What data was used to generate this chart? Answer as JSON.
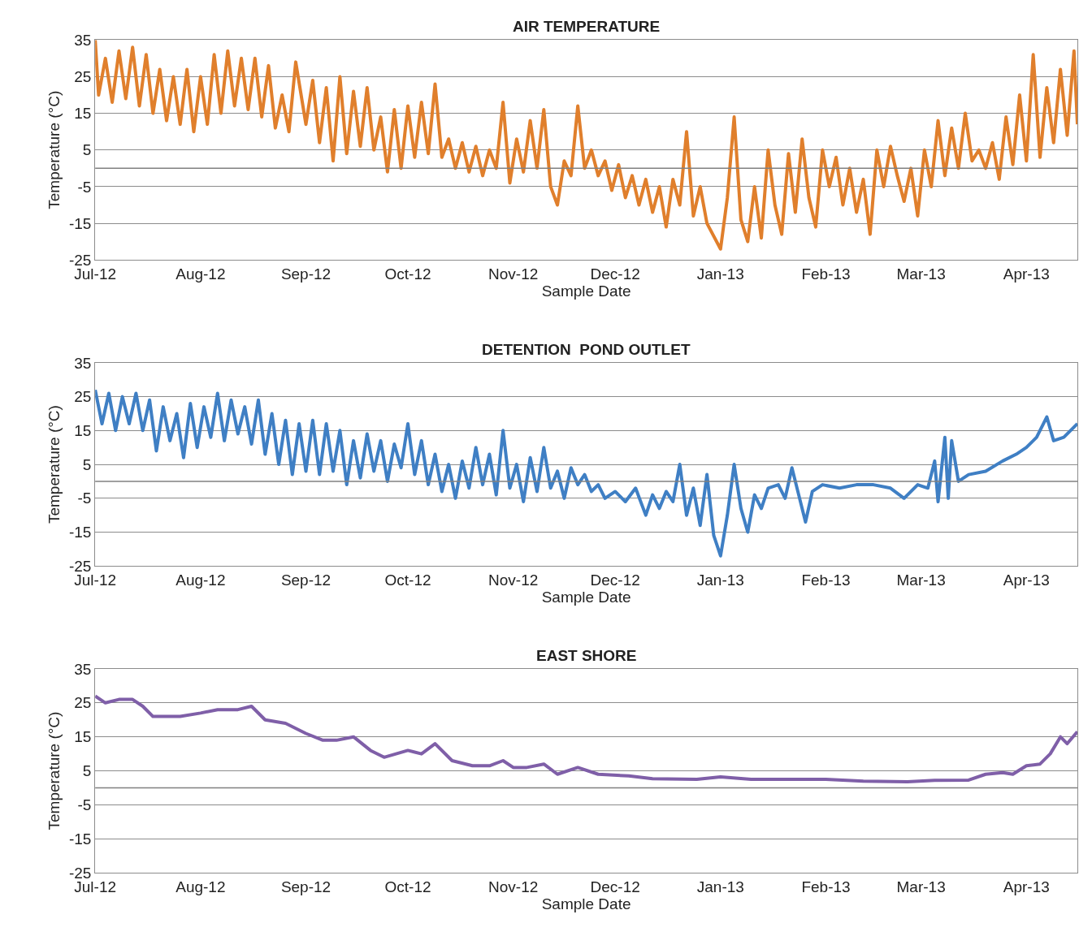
{
  "chart_data": [
    {
      "type": "line",
      "title": "AIR TEMPERATURE",
      "xlabel": "Sample Date",
      "ylabel": "Temperature (°C)",
      "grid": "y",
      "xlim": [
        "2012-07-01",
        "2013-04-16"
      ],
      "ylim": [
        -25,
        35
      ],
      "yticks": [
        -25,
        -15,
        -5,
        5,
        15,
        25,
        35
      ],
      "xticks": [
        {
          "value": "2012-07-01",
          "label": "Jul-12"
        },
        {
          "value": "2012-08-01",
          "label": "Aug-12"
        },
        {
          "value": "2012-09-01",
          "label": "Sep-12"
        },
        {
          "value": "2012-10-01",
          "label": "Oct-12"
        },
        {
          "value": "2012-11-01",
          "label": "Nov-12"
        },
        {
          "value": "2012-12-01",
          "label": "Dec-12"
        },
        {
          "value": "2013-01-01",
          "label": "Jan-13"
        },
        {
          "value": "2013-02-01",
          "label": "Feb-13"
        },
        {
          "value": "2013-03-01",
          "label": "Mar-13"
        },
        {
          "value": "2013-04-01",
          "label": "Apr-13"
        }
      ],
      "ref_lines": [
        {
          "axis": "y",
          "value": 0,
          "color": "#808080"
        }
      ],
      "series": [
        {
          "color": "#e07f2c",
          "x": [
            "2012-07-01",
            "2012-07-02",
            "2012-07-04",
            "2012-07-06",
            "2012-07-08",
            "2012-07-10",
            "2012-07-12",
            "2012-07-14",
            "2012-07-16",
            "2012-07-18",
            "2012-07-20",
            "2012-07-22",
            "2012-07-24",
            "2012-07-26",
            "2012-07-28",
            "2012-07-30",
            "2012-08-01",
            "2012-08-03",
            "2012-08-05",
            "2012-08-07",
            "2012-08-09",
            "2012-08-11",
            "2012-08-13",
            "2012-08-15",
            "2012-08-17",
            "2012-08-19",
            "2012-08-21",
            "2012-08-23",
            "2012-08-25",
            "2012-08-27",
            "2012-08-29",
            "2012-09-01",
            "2012-09-03",
            "2012-09-05",
            "2012-09-07",
            "2012-09-09",
            "2012-09-11",
            "2012-09-13",
            "2012-09-15",
            "2012-09-17",
            "2012-09-19",
            "2012-09-21",
            "2012-09-23",
            "2012-09-25",
            "2012-09-27",
            "2012-09-29",
            "2012-10-01",
            "2012-10-03",
            "2012-10-05",
            "2012-10-07",
            "2012-10-09",
            "2012-10-11",
            "2012-10-13",
            "2012-10-15",
            "2012-10-17",
            "2012-10-19",
            "2012-10-21",
            "2012-10-23",
            "2012-10-25",
            "2012-10-27",
            "2012-10-29",
            "2012-10-31",
            "2012-11-02",
            "2012-11-04",
            "2012-11-06",
            "2012-11-08",
            "2012-11-10",
            "2012-11-12",
            "2012-11-14",
            "2012-11-16",
            "2012-11-18",
            "2012-11-20",
            "2012-11-22",
            "2012-11-24",
            "2012-11-26",
            "2012-11-28",
            "2012-11-30",
            "2012-12-02",
            "2012-12-04",
            "2012-12-06",
            "2012-12-08",
            "2012-12-10",
            "2012-12-12",
            "2012-12-14",
            "2012-12-16",
            "2012-12-18",
            "2012-12-20",
            "2012-12-22",
            "2012-12-24",
            "2012-12-26",
            "2012-12-28",
            "2013-01-01",
            "2013-01-03",
            "2013-01-05",
            "2013-01-07",
            "2013-01-09",
            "2013-01-11",
            "2013-01-13",
            "2013-01-15",
            "2013-01-17",
            "2013-01-19",
            "2013-01-21",
            "2013-01-23",
            "2013-01-25",
            "2013-01-27",
            "2013-01-29",
            "2013-01-31",
            "2013-02-02",
            "2013-02-04",
            "2013-02-06",
            "2013-02-08",
            "2013-02-10",
            "2013-02-12",
            "2013-02-14",
            "2013-02-16",
            "2013-02-18",
            "2013-02-20",
            "2013-02-22",
            "2013-02-24",
            "2013-02-26",
            "2013-02-28",
            "2013-03-02",
            "2013-03-04",
            "2013-03-06",
            "2013-03-08",
            "2013-03-10",
            "2013-03-12",
            "2013-03-14",
            "2013-03-16",
            "2013-03-18",
            "2013-03-20",
            "2013-03-22",
            "2013-03-24",
            "2013-03-26",
            "2013-03-28",
            "2013-03-30",
            "2013-04-01",
            "2013-04-03",
            "2013-04-05",
            "2013-04-07",
            "2013-04-09",
            "2013-04-11",
            "2013-04-13",
            "2013-04-15",
            "2013-04-16"
          ],
          "values": [
            35,
            20,
            30,
            18,
            32,
            19,
            33,
            17,
            31,
            15,
            27,
            13,
            25,
            12,
            27,
            10,
            25,
            12,
            31,
            15,
            32,
            17,
            30,
            16,
            30,
            14,
            28,
            11,
            20,
            10,
            29,
            12,
            24,
            7,
            22,
            2,
            25,
            4,
            21,
            6,
            22,
            5,
            14,
            -1,
            16,
            0,
            17,
            3,
            18,
            4,
            23,
            3,
            8,
            0,
            7,
            -1,
            6,
            -2,
            5,
            0,
            18,
            -4,
            8,
            -1,
            13,
            0,
            16,
            -5,
            -10,
            2,
            -2,
            17,
            0,
            5,
            -2,
            2,
            -6,
            1,
            -8,
            -2,
            -10,
            -3,
            -12,
            -5,
            -16,
            -3,
            -10,
            10,
            -13,
            -5,
            -15,
            -22,
            -8,
            14,
            -14,
            -20,
            -5,
            -19,
            5,
            -10,
            -18,
            4,
            -12,
            8,
            -8,
            -16,
            5,
            -5,
            3,
            -10,
            0,
            -12,
            -3,
            -18,
            5,
            -5,
            6,
            -2,
            -9,
            0,
            -13,
            5,
            -5,
            13,
            -2,
            11,
            0,
            15,
            2,
            5,
            0,
            7,
            -3,
            14,
            1,
            20,
            2,
            31,
            3,
            22,
            7,
            27,
            9,
            32,
            12
          ]
        }
      ]
    },
    {
      "type": "line",
      "title": "DETENTION  POND OUTLET",
      "xlabel": "Sample Date",
      "ylabel": "Temperature (°C)",
      "grid": "y",
      "xlim": [
        "2012-07-01",
        "2013-04-16"
      ],
      "ylim": [
        -25,
        35
      ],
      "yticks": [
        -25,
        -15,
        -5,
        5,
        15,
        25,
        35
      ],
      "xticks": [
        {
          "value": "2012-07-01",
          "label": "Jul-12"
        },
        {
          "value": "2012-08-01",
          "label": "Aug-12"
        },
        {
          "value": "2012-09-01",
          "label": "Sep-12"
        },
        {
          "value": "2012-10-01",
          "label": "Oct-12"
        },
        {
          "value": "2012-11-01",
          "label": "Nov-12"
        },
        {
          "value": "2012-12-01",
          "label": "Dec-12"
        },
        {
          "value": "2013-01-01",
          "label": "Jan-13"
        },
        {
          "value": "2013-02-01",
          "label": "Feb-13"
        },
        {
          "value": "2013-03-01",
          "label": "Mar-13"
        },
        {
          "value": "2013-04-01",
          "label": "Apr-13"
        }
      ],
      "ref_lines": [
        {
          "axis": "y",
          "value": 0,
          "color": "#808080"
        }
      ],
      "series": [
        {
          "color": "#3f7fc4",
          "x": [
            "2012-07-01",
            "2012-07-03",
            "2012-07-05",
            "2012-07-07",
            "2012-07-09",
            "2012-07-11",
            "2012-07-13",
            "2012-07-15",
            "2012-07-17",
            "2012-07-19",
            "2012-07-21",
            "2012-07-23",
            "2012-07-25",
            "2012-07-27",
            "2012-07-29",
            "2012-07-31",
            "2012-08-02",
            "2012-08-04",
            "2012-08-06",
            "2012-08-08",
            "2012-08-10",
            "2012-08-12",
            "2012-08-14",
            "2012-08-16",
            "2012-08-18",
            "2012-08-20",
            "2012-08-22",
            "2012-08-24",
            "2012-08-26",
            "2012-08-28",
            "2012-08-30",
            "2012-09-01",
            "2012-09-03",
            "2012-09-05",
            "2012-09-07",
            "2012-09-09",
            "2012-09-11",
            "2012-09-13",
            "2012-09-15",
            "2012-09-17",
            "2012-09-19",
            "2012-09-21",
            "2012-09-23",
            "2012-09-25",
            "2012-09-27",
            "2012-09-29",
            "2012-10-01",
            "2012-10-03",
            "2012-10-05",
            "2012-10-07",
            "2012-10-09",
            "2012-10-11",
            "2012-10-13",
            "2012-10-15",
            "2012-10-17",
            "2012-10-19",
            "2012-10-21",
            "2012-10-23",
            "2012-10-25",
            "2012-10-27",
            "2012-10-29",
            "2012-10-31",
            "2012-11-02",
            "2012-11-04",
            "2012-11-06",
            "2012-11-08",
            "2012-11-10",
            "2012-11-12",
            "2012-11-14",
            "2012-11-16",
            "2012-11-18",
            "2012-11-20",
            "2012-11-22",
            "2012-11-24",
            "2012-11-26",
            "2012-11-28",
            "2012-12-01",
            "2012-12-04",
            "2012-12-07",
            "2012-12-10",
            "2012-12-12",
            "2012-12-14",
            "2012-12-16",
            "2012-12-18",
            "2012-12-20",
            "2012-12-22",
            "2012-12-24",
            "2012-12-26",
            "2012-12-28",
            "2012-12-30",
            "2013-01-01",
            "2013-01-03",
            "2013-01-05",
            "2013-01-07",
            "2013-01-09",
            "2013-01-11",
            "2013-01-13",
            "2013-01-15",
            "2013-01-18",
            "2013-01-20",
            "2013-01-22",
            "2013-01-24",
            "2013-01-26",
            "2013-01-28",
            "2013-01-31",
            "2013-02-05",
            "2013-02-10",
            "2013-02-15",
            "2013-02-20",
            "2013-02-24",
            "2013-02-28",
            "2013-03-03",
            "2013-03-05",
            "2013-03-06",
            "2013-03-08",
            "2013-03-09",
            "2013-03-10",
            "2013-03-12",
            "2013-03-15",
            "2013-03-20",
            "2013-03-25",
            "2013-03-29",
            "2013-04-01",
            "2013-04-04",
            "2013-04-07",
            "2013-04-09",
            "2013-04-12",
            "2013-04-16"
          ],
          "values": [
            27,
            17,
            26,
            15,
            25,
            17,
            26,
            15,
            24,
            9,
            22,
            12,
            20,
            7,
            23,
            10,
            22,
            13,
            26,
            12,
            24,
            14,
            22,
            11,
            24,
            8,
            20,
            5,
            18,
            2,
            17,
            3,
            18,
            2,
            17,
            3,
            15,
            -1,
            12,
            1,
            14,
            3,
            12,
            0,
            11,
            4,
            17,
            2,
            12,
            -1,
            8,
            -3,
            5,
            -5,
            6,
            -2,
            10,
            -1,
            8,
            -4,
            15,
            -2,
            5,
            -6,
            7,
            -3,
            10,
            -2,
            3,
            -5,
            4,
            -1,
            2,
            -3,
            -1,
            -5,
            -3,
            -6,
            -2,
            -10,
            -4,
            -8,
            -3,
            -6,
            5,
            -10,
            -2,
            -13,
            2,
            -16,
            -22,
            -10,
            5,
            -8,
            -15,
            -4,
            -8,
            -2,
            -1,
            -5,
            4,
            -4,
            -12,
            -3,
            -1,
            -2,
            -1,
            -1,
            -2,
            -5,
            -1,
            -2,
            6,
            -6,
            13,
            -5,
            12,
            0,
            2,
            3,
            6,
            8,
            10,
            13,
            19,
            12,
            13,
            17
          ]
        }
      ]
    },
    {
      "type": "line",
      "title": "EAST SHORE",
      "xlabel": "Sample Date",
      "ylabel": "Temperature (°C)",
      "grid": "y",
      "xlim": [
        "2012-07-01",
        "2013-04-16"
      ],
      "ylim": [
        -25,
        35
      ],
      "yticks": [
        -25,
        -15,
        -5,
        5,
        15,
        25,
        35
      ],
      "xticks": [
        {
          "value": "2012-07-01",
          "label": "Jul-12"
        },
        {
          "value": "2012-08-01",
          "label": "Aug-12"
        },
        {
          "value": "2012-09-01",
          "label": "Sep-12"
        },
        {
          "value": "2012-10-01",
          "label": "Oct-12"
        },
        {
          "value": "2012-11-01",
          "label": "Nov-12"
        },
        {
          "value": "2012-12-01",
          "label": "Dec-12"
        },
        {
          "value": "2013-01-01",
          "label": "Jan-13"
        },
        {
          "value": "2013-02-01",
          "label": "Feb-13"
        },
        {
          "value": "2013-03-01",
          "label": "Mar-13"
        },
        {
          "value": "2013-04-01",
          "label": "Apr-13"
        }
      ],
      "ref_lines": [
        {
          "axis": "y",
          "value": 0,
          "color": "#808080"
        }
      ],
      "series": [
        {
          "color": "#7f5fa8",
          "x": [
            "2012-07-01",
            "2012-07-04",
            "2012-07-08",
            "2012-07-12",
            "2012-07-15",
            "2012-07-18",
            "2012-07-22",
            "2012-07-26",
            "2012-08-01",
            "2012-08-06",
            "2012-08-12",
            "2012-08-16",
            "2012-08-20",
            "2012-08-26",
            "2012-09-01",
            "2012-09-06",
            "2012-09-10",
            "2012-09-15",
            "2012-09-20",
            "2012-09-24",
            "2012-10-01",
            "2012-10-05",
            "2012-10-09",
            "2012-10-14",
            "2012-10-20",
            "2012-10-25",
            "2012-10-29",
            "2012-11-01",
            "2012-11-05",
            "2012-11-10",
            "2012-11-14",
            "2012-11-20",
            "2012-11-26",
            "2012-12-05",
            "2012-12-12",
            "2012-12-25",
            "2013-01-01",
            "2013-01-10",
            "2013-01-20",
            "2013-02-01",
            "2013-02-12",
            "2013-02-25",
            "2013-03-05",
            "2013-03-15",
            "2013-03-20",
            "2013-03-25",
            "2013-03-28",
            "2013-04-01",
            "2013-04-05",
            "2013-04-08",
            "2013-04-11",
            "2013-04-13",
            "2013-04-16"
          ],
          "values": [
            27,
            25,
            26,
            26,
            24,
            21,
            21,
            21,
            22,
            23,
            23,
            24,
            20,
            19,
            16,
            14,
            14,
            15,
            11,
            9,
            11,
            10,
            13,
            8,
            6.5,
            6.5,
            8,
            6,
            6,
            7,
            4,
            6,
            4,
            3.5,
            2.7,
            2.5,
            3.2,
            2.5,
            2.5,
            2.5,
            2,
            1.8,
            2.2,
            2.3,
            4,
            4.5,
            4,
            6.5,
            7,
            10,
            15,
            13,
            16.5
          ]
        }
      ]
    }
  ]
}
